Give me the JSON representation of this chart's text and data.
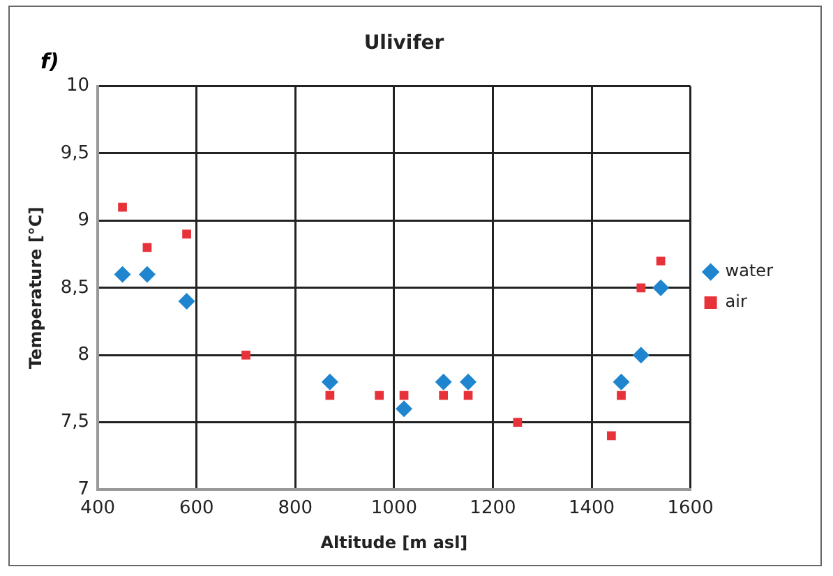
{
  "chart_data": {
    "type": "scatter",
    "title": "Ulivifer",
    "annotations": [
      "f)"
    ],
    "xlabel": "Altitude [m asl]",
    "ylabel": "Temperature [°C]",
    "xlim": [
      400,
      1600
    ],
    "xticks": [
      400,
      600,
      800,
      1000,
      1200,
      1400,
      1600
    ],
    "ylim": [
      7,
      10
    ],
    "yticks": [
      7,
      {
        "value": 7.5,
        "label": "7,5"
      },
      8,
      {
        "value": 8.5,
        "label": "8,5"
      },
      9,
      {
        "value": 9.5,
        "label": "9,5"
      },
      10
    ],
    "grid": true,
    "legend": "right",
    "series": [
      {
        "name": "water",
        "color": "#1f85cf",
        "marker": "diamond",
        "x": [
          450,
          500,
          580,
          870,
          1020,
          1100,
          1150,
          1460,
          1500,
          1540
        ],
        "values": [
          8.6,
          8.6,
          8.4,
          7.8,
          7.6,
          7.8,
          7.8,
          7.8,
          8.0,
          8.5
        ]
      },
      {
        "name": "air",
        "color": "#e8323a",
        "marker": "square",
        "x": [
          450,
          500,
          580,
          700,
          870,
          970,
          1020,
          1100,
          1150,
          1250,
          1440,
          1460,
          1500,
          1540
        ],
        "values": [
          9.1,
          8.8,
          8.9,
          8.0,
          7.7,
          7.7,
          7.7,
          7.7,
          7.7,
          7.5,
          7.4,
          7.7,
          8.5,
          8.7
        ]
      }
    ]
  }
}
